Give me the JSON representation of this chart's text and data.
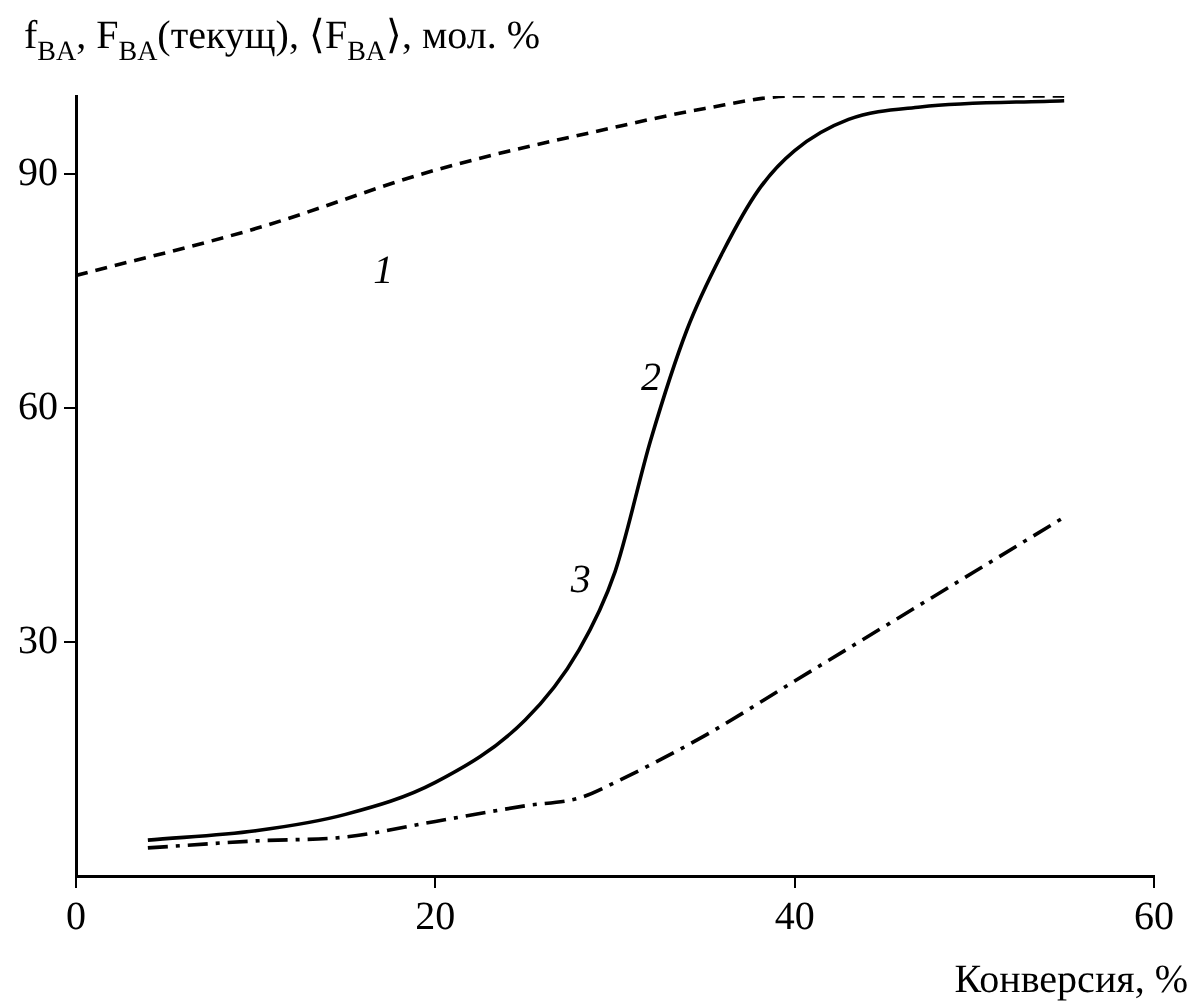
{
  "chart_data": {
    "type": "line",
    "ylabel": "f$_{BA}$, F$_{BA}$(текущ), ⟨F$_{BA}$⟩, мол. %",
    "xlabel": "Конверсия, %",
    "xlim": [
      0,
      60
    ],
    "xticks": [
      0,
      20,
      40,
      60
    ],
    "ylim": [
      0,
      100
    ],
    "yticks": [
      30,
      60,
      90
    ],
    "grid": false,
    "legend": false,
    "marker": "none",
    "series": [
      {
        "color": "#000000",
        "line_style": "dashed",
        "x": [
          0,
          10,
          20,
          30,
          35,
          40,
          55
        ],
        "values": [
          77,
          83,
          90.5,
          96,
          98.4,
          100,
          100
        ]
      },
      {
        "color": "#000000",
        "line_style": "solid",
        "x": [
          4,
          10,
          15,
          20,
          25,
          28,
          30,
          32,
          34,
          36,
          38,
          40,
          43,
          47,
          55
        ],
        "values": [
          4.6,
          5.8,
          7.9,
          12,
          20,
          29,
          39,
          56,
          70,
          80,
          88,
          93,
          97,
          98.6,
          99.4
        ]
      },
      {
        "color": "#000000",
        "line_style": "dashdot",
        "x": [
          4,
          10,
          15,
          20,
          25,
          28,
          30,
          35,
          40,
          45,
          50,
          55
        ],
        "values": [
          3.6,
          4.5,
          5,
          7,
          9,
          10,
          12,
          18,
          25,
          32,
          39,
          46
        ]
      }
    ],
    "annotations": [
      "1",
      "2",
      "3"
    ]
  }
}
